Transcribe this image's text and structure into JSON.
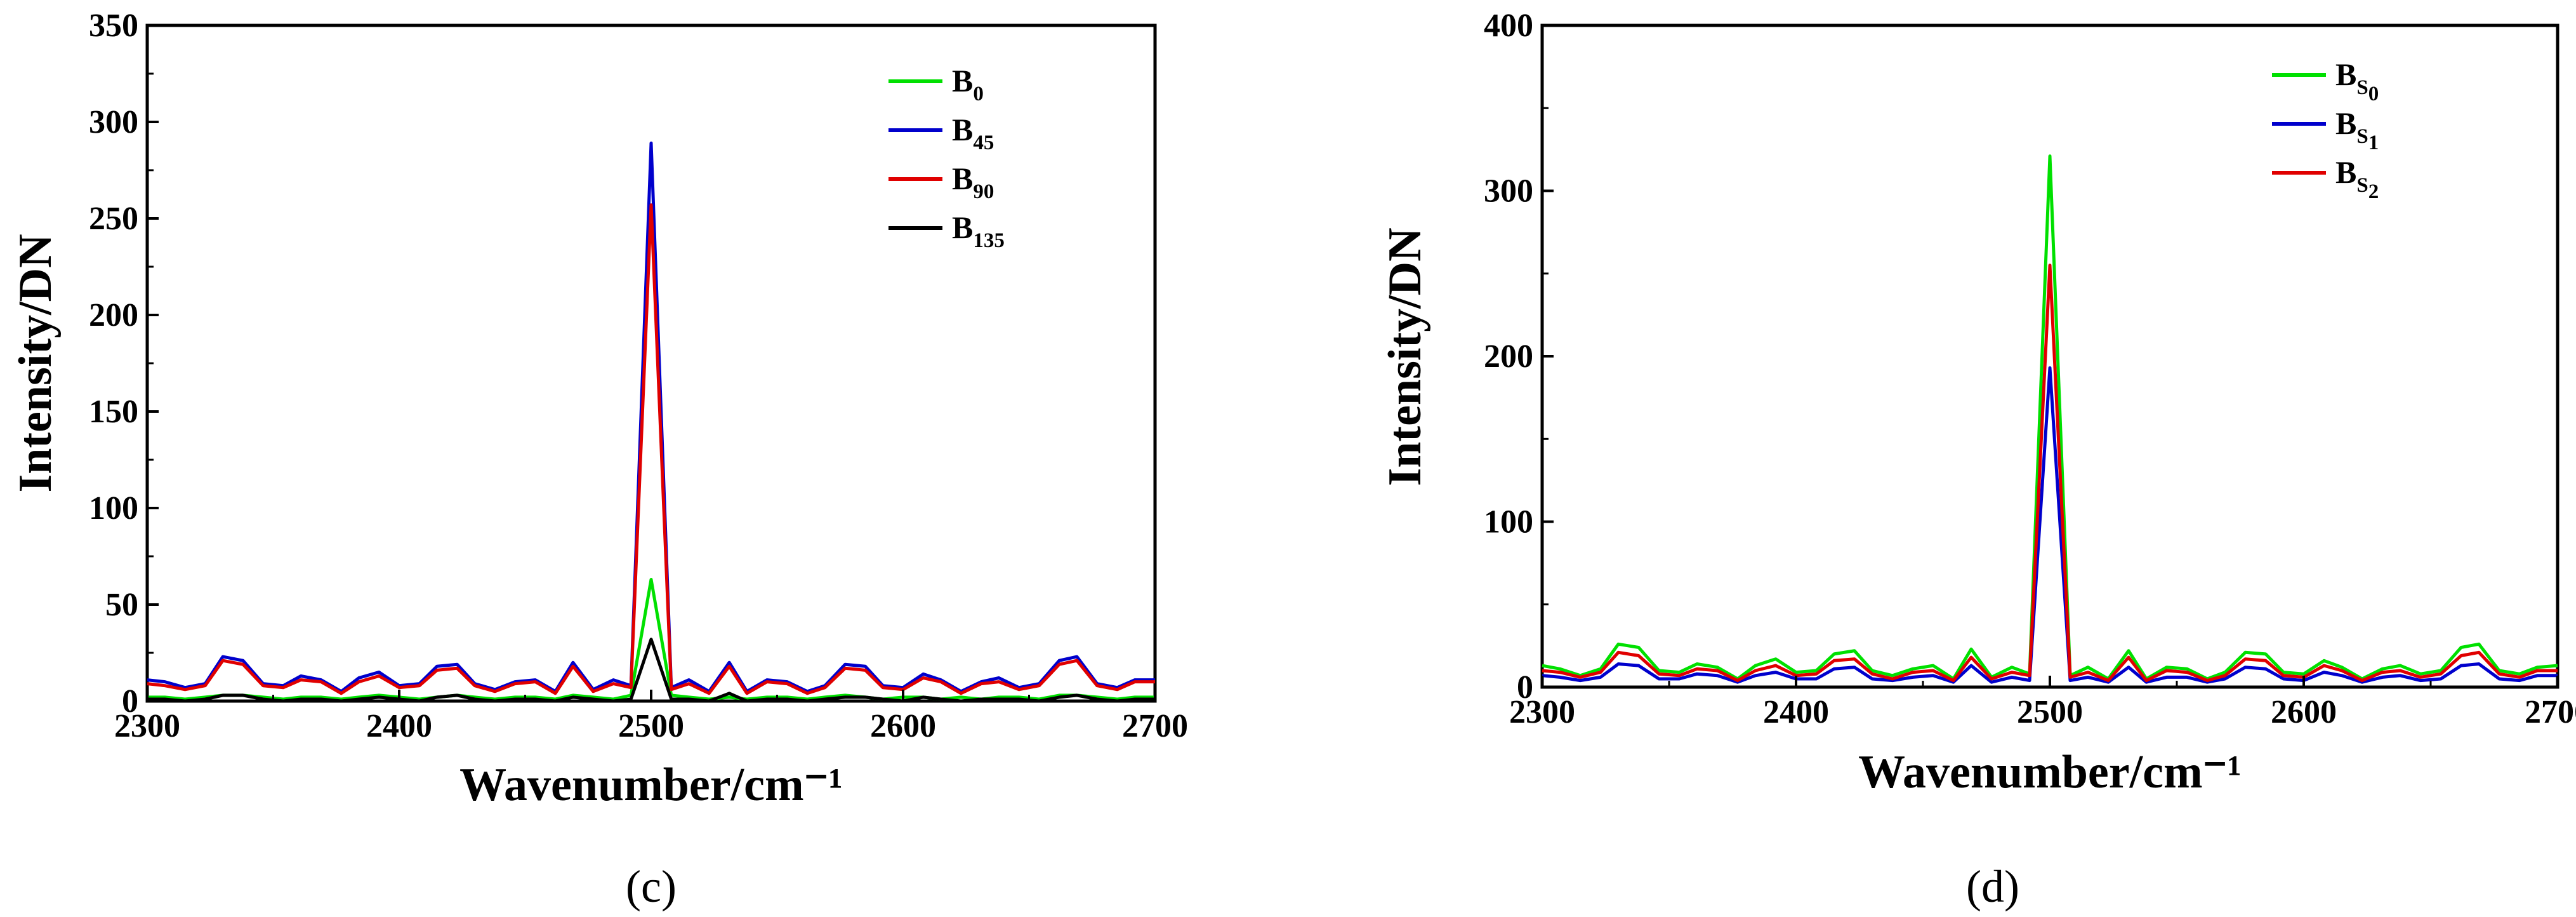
{
  "chart_data": [
    {
      "type": "line",
      "panel_label": "(c)",
      "xlabel": "Wavenumber/cm⁻¹",
      "ylabel": "Intensity/DN",
      "xlim": [
        2300,
        2700
      ],
      "ylim": [
        0,
        350
      ],
      "xticks": [
        "2300",
        "2400",
        "2500",
        "2600",
        "2700"
      ],
      "yticks": [
        "0",
        "50",
        "100",
        "150",
        "200",
        "250",
        "300",
        "350"
      ],
      "legend_position": "top-right",
      "x": [
        2300,
        2307,
        2315,
        2323,
        2330,
        2338,
        2346,
        2354,
        2361,
        2369,
        2377,
        2384,
        2392,
        2400,
        2408,
        2415,
        2423,
        2430,
        2438,
        2446,
        2454,
        2462,
        2469,
        2477,
        2485,
        2492,
        2500,
        2508,
        2515,
        2523,
        2531,
        2538,
        2546,
        2554,
        2562,
        2569,
        2577,
        2585,
        2592,
        2600,
        2608,
        2615,
        2623,
        2631,
        2638,
        2646,
        2654,
        2662,
        2669,
        2677,
        2685,
        2692,
        2700
      ],
      "series": [
        {
          "name": "B",
          "sub": "0",
          "color": "#00e000",
          "values": [
            2,
            2,
            1,
            2,
            3,
            3,
            2,
            1,
            2,
            2,
            1,
            2,
            3,
            2,
            1,
            2,
            3,
            2,
            1,
            2,
            2,
            1,
            3,
            2,
            1,
            3,
            63,
            3,
            2,
            1,
            2,
            1,
            2,
            2,
            1,
            2,
            3,
            2,
            1,
            2,
            2,
            1,
            2,
            1,
            2,
            2,
            1,
            3,
            3,
            2,
            1,
            2,
            2
          ]
        },
        {
          "name": "B",
          "sub": "45",
          "color": "#0000cc",
          "values": [
            11,
            10,
            7,
            9,
            23,
            21,
            9,
            8,
            13,
            11,
            5,
            12,
            15,
            8,
            9,
            18,
            19,
            9,
            6,
            10,
            11,
            5,
            20,
            6,
            11,
            8,
            289,
            7,
            11,
            5,
            20,
            5,
            11,
            10,
            5,
            8,
            19,
            18,
            8,
            7,
            14,
            11,
            5,
            10,
            12,
            7,
            9,
            21,
            23,
            9,
            7,
            11,
            11
          ]
        },
        {
          "name": "B",
          "sub": "90",
          "color": "#e00000",
          "values": [
            9,
            8,
            6,
            8,
            21,
            19,
            8,
            7,
            11,
            10,
            4,
            10,
            13,
            7,
            8,
            16,
            17,
            8,
            5,
            9,
            10,
            4,
            18,
            5,
            9,
            7,
            257,
            6,
            9,
            4,
            18,
            4,
            10,
            9,
            4,
            7,
            17,
            16,
            7,
            6,
            12,
            10,
            4,
            9,
            10,
            6,
            8,
            19,
            21,
            8,
            6,
            10,
            10
          ]
        },
        {
          "name": "B",
          "sub": "135",
          "color": "#000000",
          "values": [
            1,
            1,
            0,
            1,
            3,
            3,
            1,
            0,
            1,
            1,
            0,
            1,
            2,
            1,
            0,
            2,
            3,
            1,
            0,
            1,
            1,
            0,
            2,
            1,
            0,
            1,
            32,
            1,
            1,
            0,
            4,
            0,
            1,
            1,
            0,
            1,
            2,
            2,
            1,
            0,
            2,
            1,
            0,
            1,
            1,
            1,
            0,
            2,
            3,
            1,
            0,
            1,
            1
          ]
        }
      ]
    },
    {
      "type": "line",
      "panel_label": "(d)",
      "xlabel": "Wavenumber/cm⁻¹",
      "ylabel": "Intensity/DN",
      "xlim": [
        2300,
        2700
      ],
      "ylim": [
        0,
        400
      ],
      "xticks": [
        "2300",
        "2400",
        "2500",
        "2600",
        "2700"
      ],
      "yticks": [
        "0",
        "100",
        "200",
        "300",
        "400"
      ],
      "legend_position": "top-right",
      "x": [
        2300,
        2307,
        2315,
        2323,
        2330,
        2338,
        2346,
        2354,
        2361,
        2369,
        2377,
        2384,
        2392,
        2400,
        2408,
        2415,
        2423,
        2430,
        2438,
        2446,
        2454,
        2462,
        2469,
        2477,
        2485,
        2492,
        2500,
        2508,
        2515,
        2523,
        2531,
        2538,
        2546,
        2554,
        2562,
        2569,
        2577,
        2585,
        2592,
        2600,
        2608,
        2615,
        2623,
        2631,
        2638,
        2646,
        2654,
        2662,
        2669,
        2677,
        2685,
        2692,
        2700
      ],
      "series": [
        {
          "name": "B",
          "sub": "S",
          "sub2": "0",
          "color": "#00e000",
          "values": [
            13,
            11,
            7,
            11,
            26,
            24,
            10,
            9,
            14,
            12,
            5,
            13,
            17,
            9,
            10,
            20,
            22,
            10,
            7,
            11,
            13,
            5,
            23,
            6,
            12,
            8,
            321,
            7,
            12,
            5,
            22,
            5,
            12,
            11,
            5,
            9,
            21,
            20,
            9,
            8,
            16,
            12,
            5,
            11,
            13,
            8,
            10,
            24,
            26,
            10,
            8,
            12,
            13
          ]
        },
        {
          "name": "B",
          "sub": "S",
          "sub2": "1",
          "color": "#0000cc",
          "values": [
            7,
            6,
            4,
            6,
            14,
            13,
            5,
            5,
            8,
            7,
            3,
            7,
            9,
            5,
            5,
            11,
            12,
            5,
            4,
            6,
            7,
            3,
            13,
            3,
            6,
            4,
            193,
            4,
            6,
            3,
            12,
            3,
            6,
            6,
            3,
            5,
            12,
            11,
            5,
            4,
            9,
            7,
            3,
            6,
            7,
            4,
            5,
            13,
            14,
            5,
            4,
            7,
            7
          ]
        },
        {
          "name": "B",
          "sub": "S",
          "sub2": "2",
          "color": "#e00000",
          "values": [
            10,
            9,
            6,
            9,
            21,
            19,
            8,
            7,
            11,
            10,
            4,
            10,
            13,
            7,
            8,
            16,
            17,
            8,
            5,
            9,
            10,
            4,
            18,
            5,
            9,
            7,
            255,
            6,
            9,
            4,
            18,
            4,
            10,
            9,
            4,
            7,
            17,
            16,
            7,
            6,
            13,
            10,
            4,
            9,
            10,
            6,
            8,
            19,
            21,
            8,
            6,
            10,
            10
          ]
        }
      ]
    }
  ]
}
